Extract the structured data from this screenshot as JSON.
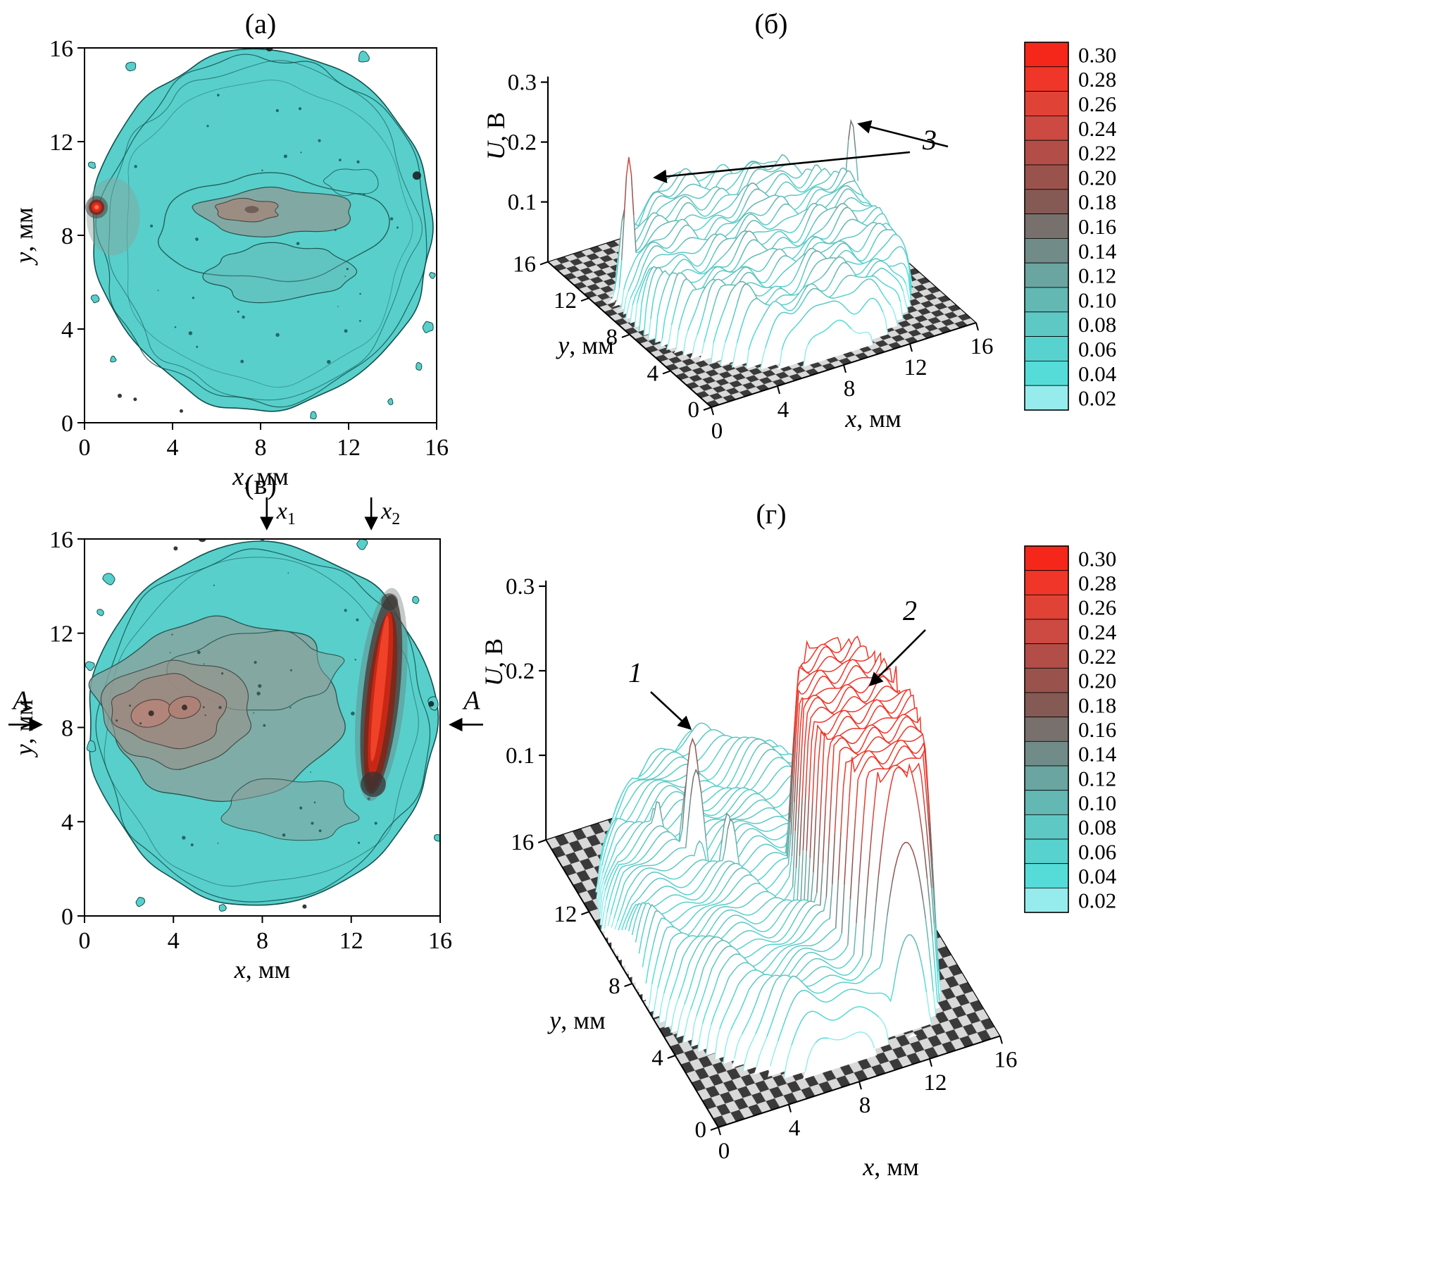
{
  "figure": {
    "description": "Four-panel scientific figure: two contour maps of a circular sample and two 3D wireframe surface plots of voltage U over x-y plane, each 3D plot with a color scale bar",
    "background": "#ffffff"
  },
  "axes": {
    "x": {
      "var": "x",
      "unit": ", мм",
      "label": "x, мм",
      "ticks": [
        "0",
        "4",
        "8",
        "12",
        "16"
      ],
      "lim": [
        0,
        16
      ]
    },
    "y": {
      "var": "y",
      "unit": ", мм",
      "label": "y, мм",
      "ticks": [
        "0",
        "4",
        "8",
        "12",
        "16"
      ],
      "lim": [
        0,
        16
      ]
    },
    "z": {
      "var": "U",
      "unit": ", В",
      "label": "U, В",
      "ticks": [
        "0.1",
        "0.2",
        "0.3"
      ],
      "lim": [
        0,
        0.3
      ]
    }
  },
  "colorbar": {
    "ticks": [
      "0.30",
      "0.28",
      "0.26",
      "0.24",
      "0.22",
      "0.20",
      "0.18",
      "0.16",
      "0.14",
      "0.12",
      "0.10",
      "0.08",
      "0.06",
      "0.04",
      "0.02"
    ],
    "colors": [
      "#f5271b",
      "#ef3629",
      "#e14236",
      "#cc4a41",
      "#b24e47",
      "#9a524d",
      "#855954",
      "#78706d",
      "#718b88",
      "#6aa5a1",
      "#63b8b4",
      "#5dc8c4",
      "#58d2ce",
      "#55dcd8",
      "#96ecec"
    ]
  },
  "annotations": {
    "spikes_label": "3",
    "peak_label": "1",
    "ridge_label": "2",
    "section_label": "A",
    "x1": {
      "var": "x",
      "sub": "1"
    },
    "x2": {
      "var": "x",
      "sub": "2"
    }
  },
  "palette": {
    "disk_fill": "#58cfcb",
    "contour_line": "#11504e",
    "gray_region": "#8aa19c",
    "brown_region": "#9e8a80",
    "mauve_core": "#b2857b",
    "hot_red": "#e8281a",
    "dark_red": "#7b2a1d",
    "checker_dark": "#3a3a3a",
    "checker_light": "#d9d9d9"
  },
  "chart_data": [
    {
      "id": "a",
      "type": "heatmap",
      "subtype": "filled-contour-map",
      "title": "(а)",
      "xlabel": "x, мм",
      "ylabel": "y, мм",
      "xticks": [
        0,
        4,
        8,
        12,
        16
      ],
      "yticks": [
        0,
        4,
        8,
        12,
        16
      ],
      "xlim": [
        0,
        16
      ],
      "ylim": [
        0,
        16
      ],
      "features": {
        "disk": {
          "cx": 8.1,
          "cy": 8.2,
          "r": 7.7,
          "value": 0.08
        },
        "gray_band": {
          "cx": 8.6,
          "cy": 9.0,
          "rx": 3.7,
          "ry": 1.0,
          "value": 0.16
        },
        "core": {
          "cx": 7.4,
          "cy": 9.05,
          "rx": 1.4,
          "ry": 0.5,
          "value": 0.18
        },
        "hot_spot": {
          "x": 0.55,
          "y": 9.2,
          "r": 0.35,
          "value": 0.3
        },
        "satellites": [
          [
            2.1,
            15.2,
            7
          ],
          [
            12.7,
            15.6,
            8
          ],
          [
            15.6,
            4.1,
            8
          ],
          [
            15.2,
            2.4,
            5
          ],
          [
            0.5,
            5.3,
            6
          ],
          [
            0.35,
            11.0,
            5
          ],
          [
            1.3,
            2.7,
            4
          ],
          [
            13.9,
            0.9,
            4
          ],
          [
            15.8,
            6.3,
            4
          ],
          [
            10.4,
            0.3,
            5
          ]
        ],
        "dark_spots": [
          [
            15.1,
            10.55,
            6
          ],
          [
            8.4,
            16.0,
            5
          ],
          [
            1.6,
            1.15,
            3
          ],
          [
            2.3,
            1.0,
            2.5
          ],
          [
            4.4,
            0.5,
            2.5
          ]
        ]
      }
    },
    {
      "id": "b",
      "type": "surface3d",
      "subtype": "wireframe-contour-surface",
      "title": "(б)",
      "xlabel": "x, мм",
      "ylabel": "y, мм",
      "zlabel": "U, В",
      "xticks": [
        0,
        4,
        8,
        12,
        16
      ],
      "yticks": [
        0,
        4,
        8,
        12,
        16
      ],
      "zticks": [
        0.1,
        0.2,
        0.3
      ],
      "zlim": [
        0,
        0.3
      ],
      "dome": {
        "cx": 8.2,
        "cy": 8.2,
        "r": 7.6,
        "level": 0.09
      },
      "spikes": [
        {
          "x": 1.6,
          "y": 10.8,
          "height": 0.27
        },
        {
          "x": 15.6,
          "y": 11.5,
          "height": 0.17
        }
      ],
      "annotation": {
        "label": "3",
        "points_to": "two narrow edge spikes"
      }
    },
    {
      "id": "v",
      "type": "heatmap",
      "subtype": "filled-contour-map",
      "title": "(в)",
      "xlabel": "x, мм",
      "ylabel": "y, мм",
      "xticks": [
        0,
        4,
        8,
        12,
        16
      ],
      "yticks": [
        0,
        4,
        8,
        12,
        16
      ],
      "xlim": [
        0,
        16
      ],
      "ylim": [
        0,
        16
      ],
      "features": {
        "disk": {
          "cx": 8.0,
          "cy": 8.1,
          "r": 7.8,
          "value": 0.08
        },
        "gray_region": {
          "cx": 6.0,
          "cy": 8.9,
          "rx": 5.6,
          "ry": 3.7,
          "value": 0.14
        },
        "brown_region": {
          "cx": 3.8,
          "cy": 8.7,
          "rx": 2.5,
          "ry": 1.5,
          "value": 0.18
        },
        "mauve_cores": [
          {
            "x": 3.0,
            "y": 8.6,
            "value": 0.22
          },
          {
            "x": 4.5,
            "y": 8.85,
            "value": 0.22
          }
        ],
        "red_stripe": {
          "cx": 13.35,
          "cy": 9.4,
          "half_len": 3.9,
          "half_width": 0.45,
          "angle_deg": 6,
          "value": 0.3
        },
        "x1": 8.2,
        "x2": 12.9,
        "section_y": 8.3,
        "satellites": [
          [
            1.1,
            14.3,
            8
          ],
          [
            0.7,
            12.9,
            5
          ],
          [
            12.5,
            15.8,
            7
          ],
          [
            8.0,
            16.1,
            5
          ],
          [
            15.7,
            9.0,
            9
          ],
          [
            15.9,
            3.3,
            5
          ],
          [
            2.5,
            0.6,
            6
          ],
          [
            6.2,
            0.35,
            5
          ],
          [
            0.3,
            7.2,
            7
          ],
          [
            0.25,
            10.6,
            6
          ],
          [
            14.9,
            13.4,
            5
          ]
        ],
        "dark_spots": [
          [
            15.6,
            9.0,
            4
          ],
          [
            5.3,
            16.05,
            6
          ],
          [
            4.1,
            15.6,
            3
          ],
          [
            9.9,
            0.4,
            3
          ]
        ]
      }
    },
    {
      "id": "g",
      "type": "surface3d",
      "subtype": "wireframe-contour-surface",
      "title": "(г)",
      "xlabel": "x, мм",
      "ylabel": "y, мм",
      "zlabel": "U, В",
      "xticks": [
        0,
        4,
        8,
        12,
        16
      ],
      "yticks": [
        0,
        4,
        8,
        12,
        16
      ],
      "zticks": [
        0.1,
        0.2,
        0.3
      ],
      "zlim": [
        0,
        0.3
      ],
      "dome": {
        "cx": 7.5,
        "cy": 8.5,
        "r": 7.8,
        "level": 0.08
      },
      "peaks": [
        {
          "x": 4.8,
          "y": 10.2,
          "height": 0.21,
          "sigma": 0.5,
          "label": "1"
        },
        {
          "x": 6.0,
          "y": 8.8,
          "height": 0.15,
          "sigma": 0.4
        },
        {
          "x": 3.4,
          "y": 11.3,
          "height": 0.13,
          "sigma": 0.3
        }
      ],
      "ridge": {
        "cx": 11.8,
        "cy": 6.0,
        "rx": 2.7,
        "ry": 3.8,
        "height": 0.3,
        "label": "2"
      }
    }
  ]
}
